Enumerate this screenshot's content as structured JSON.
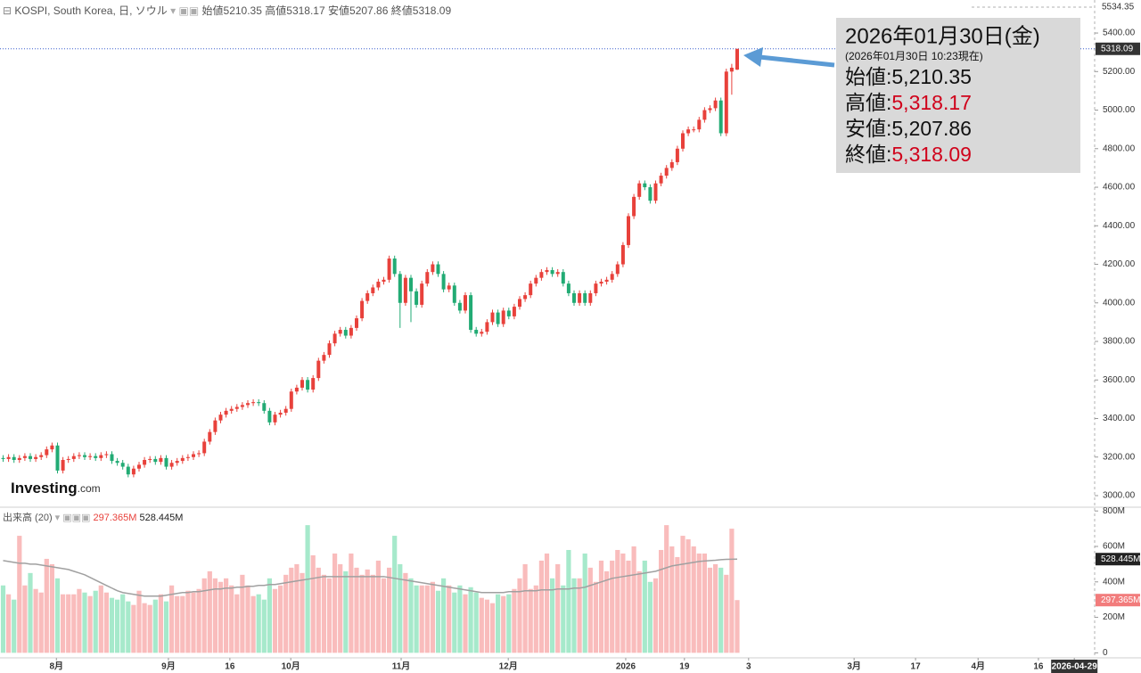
{
  "chart_data": {
    "type": "candlestick",
    "title": "KOSPI, South Korea, 日, ソウル",
    "header_values": [
      {
        "name": "始値",
        "value": 5210.35
      },
      {
        "name": "高値",
        "value": 5318.17
      },
      {
        "name": "安値",
        "value": 5207.86
      },
      {
        "name": "終値",
        "value": 5318.09
      }
    ],
    "info_box": {
      "date": "2026年01月30日(金)",
      "asof": "(2026年01月30日 10:23現在)",
      "rows": [
        {
          "name": "始値:",
          "value": "5,210.35",
          "color": "#111111"
        },
        {
          "name": "高値:",
          "value": "5,318.17",
          "color": "#d0021b"
        },
        {
          "name": "安値:",
          "value": "5,207.86",
          "color": "#111111"
        },
        {
          "name": "終値:",
          "value": "5,318.09",
          "color": "#d0021b"
        }
      ]
    },
    "logo": {
      "main": "Investing",
      "suffix": ".com"
    },
    "up_color": "#e8413b",
    "down_color": "#22ab74",
    "volume_up_color": "#f9bcbc",
    "volume_down_color": "#a6e9cb",
    "ma_color": "#a0a0a0",
    "ylim": [
      2944.5,
      5534.35
    ],
    "yticks": [
      {
        "value": 3000,
        "label": "3000.00"
      },
      {
        "value": 3200,
        "label": "3200.00"
      },
      {
        "value": 3400,
        "label": "3400.00"
      },
      {
        "value": 3600,
        "label": "3600.00"
      },
      {
        "value": 3800,
        "label": "3800.00"
      },
      {
        "value": 4000,
        "label": "4000.00"
      },
      {
        "value": 4200,
        "label": "4200.00"
      },
      {
        "value": 4400,
        "label": "4400.00"
      },
      {
        "value": 4600,
        "label": "4600.00"
      },
      {
        "value": 4800,
        "label": "4800.00"
      },
      {
        "value": 5000,
        "label": "5000.00"
      },
      {
        "value": 5200,
        "label": "5200.00"
      },
      {
        "value": 5400,
        "label": "5400.00"
      }
    ],
    "volume_title": "出来高 (20)",
    "y2lim": [
      -28.4,
      816.2
    ],
    "y2ticks": [
      0,
      {
        "value": 200,
        "label": "200M"
      },
      {
        "value": 400,
        "label": "400M"
      },
      {
        "value": 600,
        "label": "600M"
      },
      {
        "value": 800,
        "label": "800M"
      }
    ],
    "last_volume_label": "297.365M",
    "last_ma_label": "528.445M",
    "xticks": [
      {
        "value": 9.8,
        "label": "8月"
      },
      {
        "value": 30.4,
        "label": "9月"
      },
      {
        "value": 41.7,
        "label": "16"
      },
      {
        "value": 52.9,
        "label": "10月"
      },
      {
        "value": 73.2,
        "label": "11月"
      },
      {
        "value": 92.9,
        "label": "12月"
      },
      {
        "value": 114.5,
        "label": "2026"
      },
      {
        "value": 125.3,
        "label": "19"
      },
      {
        "value": 137.1,
        "label": "3"
      },
      {
        "value": 156.5,
        "label": "3月"
      },
      {
        "value": 167.8,
        "label": "17"
      },
      {
        "value": 179.3,
        "label": "4月"
      },
      {
        "value": 190.4,
        "label": "16"
      },
      {
        "value": 197,
        "label": "2026-04-29"
      }
    ],
    "open": [
      3195,
      3190,
      3200,
      3185,
      3195,
      3205,
      3190,
      3200,
      3210,
      3240,
      3260,
      3130,
      3185,
      3190,
      3205,
      3210,
      3200,
      3205,
      3195,
      3210,
      3215,
      3180,
      3170,
      3150,
      3110,
      3140,
      3160,
      3185,
      3190,
      3175,
      3195,
      3150,
      3170,
      3180,
      3195,
      3200,
      3215,
      3220,
      3280,
      3330,
      3390,
      3420,
      3440,
      3450,
      3460,
      3470,
      3480,
      3485,
      3480,
      3440,
      3380,
      3420,
      3430,
      3450,
      3540,
      3560,
      3600,
      3550,
      3610,
      3700,
      3730,
      3790,
      3840,
      3860,
      3830,
      3870,
      3920,
      4010,
      4050,
      4080,
      4110,
      4120,
      4230,
      4150,
      4000,
      4130,
      4060,
      3990,
      4100,
      4160,
      4200,
      4150,
      4070,
      4090,
      4000,
      3960,
      4040,
      3860,
      3840,
      3850,
      3900,
      3950,
      3890,
      3960,
      3930,
      3980,
      4020,
      4040,
      4100,
      4130,
      4160,
      4170,
      4150,
      4160,
      4100,
      4050,
      4000,
      4050,
      4000,
      4050,
      4100,
      4110,
      4120,
      4150,
      4200,
      4300,
      4450,
      4550,
      4620,
      4600,
      4530,
      4620,
      4660,
      4700,
      4730,
      4800,
      4880,
      4900,
      4900,
      4950,
      5000,
      5010,
      5050,
      4880,
      5200,
      5210.35
    ],
    "high": [
      3210,
      3215,
      3215,
      3210,
      3220,
      3220,
      3215,
      3225,
      3255,
      3275,
      3275,
      3200,
      3205,
      3220,
      3225,
      3225,
      3220,
      3220,
      3225,
      3230,
      3230,
      3195,
      3185,
      3165,
      3155,
      3175,
      3200,
      3205,
      3205,
      3210,
      3210,
      3185,
      3195,
      3210,
      3215,
      3230,
      3235,
      3295,
      3345,
      3405,
      3435,
      3455,
      3465,
      3475,
      3485,
      3495,
      3500,
      3500,
      3495,
      3455,
      3435,
      3445,
      3465,
      3555,
      3575,
      3615,
      3615,
      3625,
      3715,
      3745,
      3805,
      3855,
      3875,
      3875,
      3885,
      3935,
      4025,
      4065,
      4095,
      4125,
      4135,
      4245,
      4245,
      4165,
      4145,
      4145,
      4075,
      4115,
      4175,
      4215,
      4215,
      4165,
      4105,
      4105,
      4015,
      4055,
      4055,
      3875,
      3865,
      3915,
      3965,
      3965,
      3975,
      3975,
      3995,
      4035,
      4055,
      4115,
      4145,
      4175,
      4185,
      4185,
      4175,
      4175,
      4115,
      4065,
      4065,
      4065,
      4065,
      4115,
      4125,
      4135,
      4165,
      4215,
      4315,
      4465,
      4565,
      4635,
      4635,
      4615,
      4635,
      4675,
      4715,
      4745,
      4815,
      4895,
      4915,
      4915,
      4965,
      5015,
      5025,
      5065,
      5065,
      5215,
      5240,
      5318.17
    ],
    "low": [
      3175,
      3175,
      3170,
      3170,
      3180,
      3175,
      3175,
      3185,
      3195,
      3225,
      3115,
      3115,
      3170,
      3175,
      3190,
      3185,
      3185,
      3180,
      3180,
      3195,
      3165,
      3155,
      3135,
      3095,
      3095,
      3125,
      3145,
      3170,
      3160,
      3160,
      3135,
      3135,
      3155,
      3165,
      3180,
      3185,
      3200,
      3205,
      3265,
      3315,
      3375,
      3405,
      3425,
      3435,
      3445,
      3455,
      3465,
      3465,
      3425,
      3365,
      3365,
      3405,
      3415,
      3435,
      3525,
      3545,
      3535,
      3535,
      3595,
      3685,
      3715,
      3775,
      3825,
      3815,
      3815,
      3855,
      3905,
      3995,
      4035,
      4065,
      4095,
      4105,
      4135,
      3870,
      3985,
      3900,
      3975,
      3975,
      4085,
      4145,
      4135,
      4055,
      4055,
      3985,
      3945,
      3945,
      3845,
      3825,
      3825,
      3835,
      3885,
      3875,
      3875,
      3915,
      3915,
      3965,
      4005,
      4025,
      4085,
      4115,
      4145,
      4135,
      4135,
      4085,
      4035,
      3985,
      3985,
      3985,
      3985,
      4035,
      4085,
      4095,
      4105,
      4135,
      4185,
      4285,
      4435,
      4535,
      4585,
      4515,
      4515,
      4605,
      4645,
      4685,
      4715,
      4785,
      4865,
      4885,
      4885,
      4935,
      4985,
      4995,
      4865,
      4865,
      5080,
      5207.86
    ],
    "close": [
      3190,
      3200,
      3185,
      3195,
      3205,
      3190,
      3200,
      3210,
      3240,
      3260,
      3130,
      3185,
      3190,
      3205,
      3210,
      3200,
      3205,
      3195,
      3210,
      3215,
      3180,
      3170,
      3150,
      3110,
      3140,
      3160,
      3185,
      3190,
      3175,
      3195,
      3150,
      3170,
      3180,
      3195,
      3200,
      3215,
      3220,
      3280,
      3330,
      3390,
      3420,
      3440,
      3450,
      3460,
      3470,
      3480,
      3485,
      3480,
      3440,
      3380,
      3420,
      3430,
      3450,
      3540,
      3560,
      3600,
      3550,
      3610,
      3700,
      3730,
      3790,
      3840,
      3860,
      3830,
      3870,
      3920,
      4010,
      4050,
      4080,
      4110,
      4120,
      4230,
      4150,
      4000,
      4130,
      4060,
      3990,
      4100,
      4160,
      4200,
      4150,
      4070,
      4090,
      4000,
      3960,
      4040,
      3860,
      3840,
      3850,
      3900,
      3950,
      3890,
      3960,
      3930,
      3980,
      4020,
      4040,
      4100,
      4130,
      4160,
      4170,
      4150,
      4160,
      4100,
      4050,
      4000,
      4050,
      4000,
      4050,
      4100,
      4110,
      4120,
      4150,
      4200,
      4300,
      4450,
      4550,
      4620,
      4600,
      4530,
      4620,
      4660,
      4700,
      4730,
      4800,
      4880,
      4900,
      4900,
      4950,
      5000,
      5010,
      5050,
      4880,
      5200,
      5220,
      5318.09
    ],
    "volume": [
      380,
      330,
      300,
      660,
      380,
      450,
      360,
      340,
      530,
      500,
      420,
      330,
      330,
      330,
      360,
      340,
      320,
      350,
      380,
      340,
      310,
      300,
      330,
      290,
      270,
      350,
      280,
      270,
      300,
      330,
      290,
      380,
      320,
      320,
      350,
      340,
      360,
      420,
      460,
      420,
      400,
      420,
      380,
      330,
      440,
      380,
      320,
      330,
      300,
      420,
      360,
      380,
      440,
      480,
      500,
      450,
      720,
      550,
      480,
      440,
      420,
      560,
      500,
      460,
      560,
      480,
      440,
      470,
      440,
      520,
      420,
      480,
      660,
      500,
      450,
      420,
      380,
      380,
      380,
      400,
      350,
      420,
      380,
      340,
      380,
      330,
      370,
      340,
      310,
      300,
      280,
      330,
      320,
      330,
      360,
      420,
      500,
      360,
      380,
      520,
      560,
      420,
      500,
      380,
      580,
      420,
      420,
      560,
      480,
      400,
      520,
      460,
      520,
      580,
      560,
      520,
      600,
      460,
      520,
      400,
      420,
      580,
      720,
      600,
      540,
      660,
      640,
      600,
      560,
      560,
      480,
      500,
      480,
      440,
      700,
      297.365
    ],
    "volume_ma": [
      520,
      515,
      510,
      505,
      505,
      500,
      500,
      495,
      490,
      485,
      480,
      475,
      470,
      460,
      450,
      440,
      425,
      410,
      395,
      380,
      365,
      350,
      340,
      335,
      330,
      325,
      320,
      320,
      320,
      320,
      325,
      330,
      335,
      340,
      340,
      345,
      345,
      350,
      355,
      360,
      360,
      365,
      365,
      370,
      370,
      375,
      375,
      380,
      380,
      385,
      385,
      390,
      395,
      400,
      405,
      410,
      415,
      420,
      425,
      430,
      430,
      430,
      430,
      430,
      430,
      430,
      430,
      430,
      430,
      430,
      430,
      425,
      420,
      415,
      410,
      405,
      400,
      395,
      390,
      385,
      380,
      375,
      370,
      365,
      360,
      355,
      350,
      345,
      340,
      340,
      340,
      340,
      340,
      345,
      345,
      345,
      350,
      350,
      350,
      355,
      355,
      355,
      360,
      360,
      360,
      365,
      365,
      370,
      380,
      390,
      400,
      410,
      420,
      425,
      430,
      435,
      440,
      445,
      450,
      455,
      460,
      470,
      480,
      490,
      495,
      500,
      505,
      510,
      515,
      518,
      520,
      522,
      525,
      527,
      528,
      528.445
    ]
  }
}
